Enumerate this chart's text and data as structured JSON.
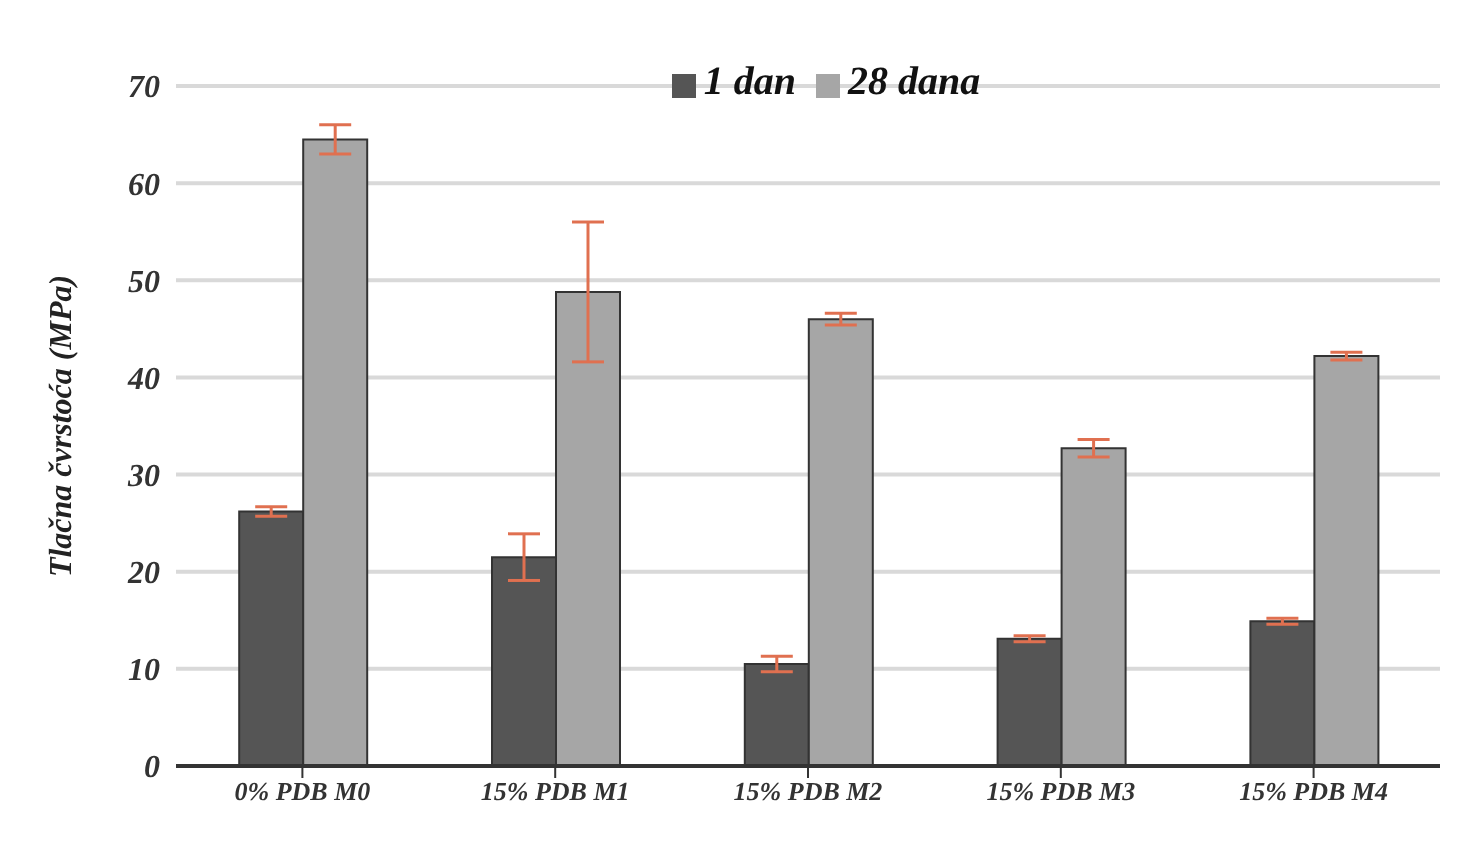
{
  "chart_data": {
    "type": "bar",
    "ylabel": "Tlačna čvrstoća  (MPa)",
    "categories": [
      "0% PDB   M0",
      "15% PDB   M1",
      "15% PDB   M2",
      "15% PDB   M3",
      "15% PDB   M4"
    ],
    "series": [
      {
        "name": "1 dan",
        "color": "#555555",
        "values": [
          26.2,
          21.5,
          10.5,
          13.1,
          14.9
        ],
        "errors": [
          0.5,
          2.4,
          0.8,
          0.3,
          0.3
        ]
      },
      {
        "name": "28 dana",
        "color": "#a6a6a6",
        "values": [
          64.5,
          48.8,
          46.0,
          32.7,
          42.2
        ],
        "errors": [
          1.5,
          7.2,
          0.6,
          0.9,
          0.4
        ]
      }
    ],
    "ylim": [
      0,
      70
    ],
    "yticks": [
      0,
      10,
      20,
      30,
      40,
      50,
      60,
      70
    ],
    "grid": "y",
    "legend": "top"
  }
}
